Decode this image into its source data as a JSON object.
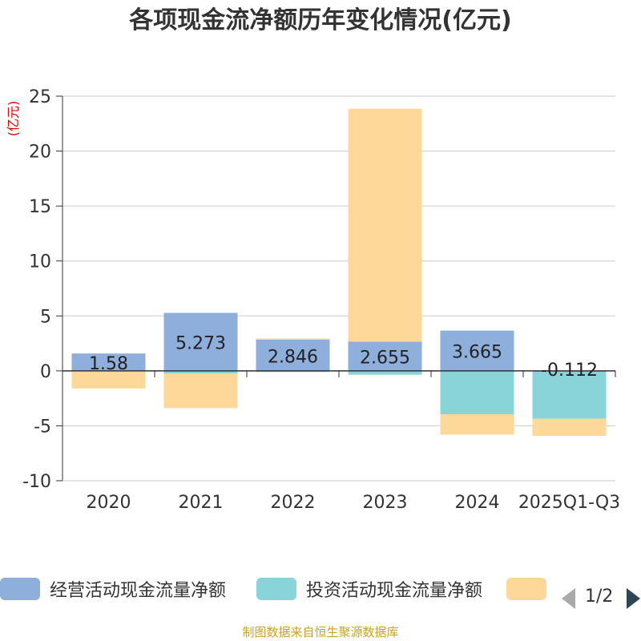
{
  "chart_data": {
    "type": "bar",
    "stacked": true,
    "title": "各项现金流净额历年变化情况(亿元)",
    "ylabel": "(亿元)",
    "xlabel": "",
    "ylim": [
      -10,
      25
    ],
    "yticks": [
      25,
      20,
      15,
      10,
      5,
      0,
      -5,
      -10
    ],
    "categories": [
      "2020",
      "2021",
      "2022",
      "2023",
      "2024",
      "2025Q1-Q3"
    ],
    "series": [
      {
        "name": "经营活动现金流量净额",
        "color": "#8eaedb",
        "values": [
          1.58,
          5.273,
          2.846,
          2.655,
          3.665,
          -0.112
        ],
        "labels": [
          "1.58",
          "5.273",
          "2.846",
          "2.655",
          "3.665",
          "-0.112"
        ]
      },
      {
        "name": "投资活动现金流量净额",
        "color": "#88d4d8",
        "values": [
          -0.05,
          -0.25,
          -0.1,
          -0.35,
          -3.95,
          -4.25
        ]
      },
      {
        "name": "",
        "color": "#fdd898",
        "values": [
          -1.55,
          -3.15,
          0.1,
          21.2,
          -1.85,
          -1.55
        ]
      }
    ],
    "legend_position": "bottom"
  },
  "legend": {
    "page": "1/2"
  },
  "footer": {
    "source": "制图数据来自恒生聚源数据库"
  }
}
